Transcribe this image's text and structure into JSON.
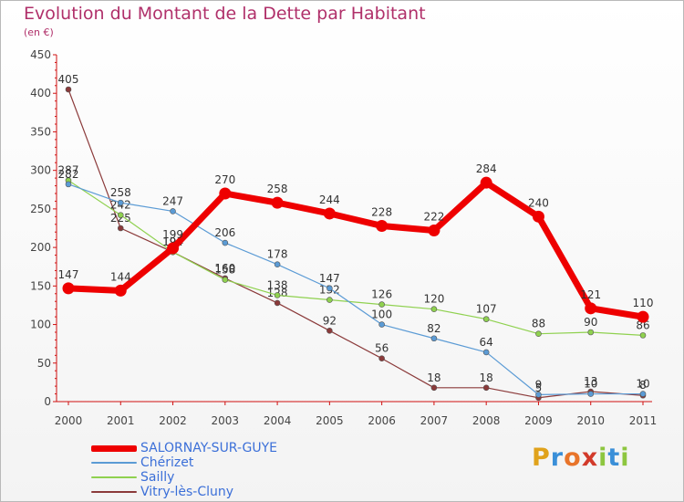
{
  "title": "Evolution du Montant de la Dette par Habitant",
  "subtitle": "(en €)",
  "logo": {
    "letters": [
      "P",
      "r",
      "o",
      "x",
      "i",
      "t",
      "i"
    ],
    "colors": [
      "#e0a21b",
      "#3a8fd8",
      "#e8742a",
      "#d23a2a",
      "#8dc63f",
      "#3a8fd8",
      "#8dc63f"
    ]
  },
  "chart_data": {
    "type": "line",
    "categories": [
      "2000",
      "2001",
      "2002",
      "2003",
      "2004",
      "2005",
      "2006",
      "2007",
      "2008",
      "2009",
      "2010",
      "2011"
    ],
    "ylim": [
      0,
      450
    ],
    "yticks": [
      "0",
      "50",
      "100",
      "150",
      "200",
      "250",
      "300",
      "350",
      "400",
      "450"
    ],
    "grid": false,
    "legend_position": "bottom-left",
    "series": [
      {
        "name": "SALORNAY-SUR-GUYE",
        "color": "#ee0000",
        "width": 7,
        "values": [
          147,
          144,
          199,
          270,
          258,
          244,
          228,
          222,
          284,
          240,
          121,
          110
        ],
        "labels": [
          "147",
          "144",
          "199",
          "270",
          "258",
          "244",
          "228",
          "222",
          "284",
          "240",
          "121",
          "110"
        ]
      },
      {
        "name": "Chérizet",
        "color": "#5b9bd5",
        "width": 1.2,
        "values": [
          282,
          258,
          247,
          206,
          178,
          147,
          100,
          82,
          64,
          9,
          10,
          10
        ],
        "labels": [
          "282",
          "258",
          "247",
          "206",
          "178",
          "147",
          "100",
          "82",
          "64",
          "9",
          "10",
          "10"
        ]
      },
      {
        "name": "Sailly",
        "color": "#8fd14f",
        "width": 1.2,
        "values": [
          287,
          242,
          194,
          158,
          138,
          132,
          126,
          120,
          107,
          88,
          90,
          86
        ],
        "labels": [
          "287",
          "242",
          "194",
          "158",
          "138",
          "132",
          "126",
          "120",
          "107",
          "88",
          "90",
          "86"
        ]
      },
      {
        "name": "Vitry-lès-Cluny",
        "color": "#8b3a3a",
        "width": 1.2,
        "values": [
          405,
          225,
          194,
          160,
          128,
          92,
          56,
          18,
          18,
          5,
          13,
          8
        ],
        "labels": [
          "405",
          "225",
          "194",
          "160",
          "128",
          "92",
          "56",
          "18",
          "18",
          "5",
          "13",
          "8"
        ]
      }
    ]
  }
}
